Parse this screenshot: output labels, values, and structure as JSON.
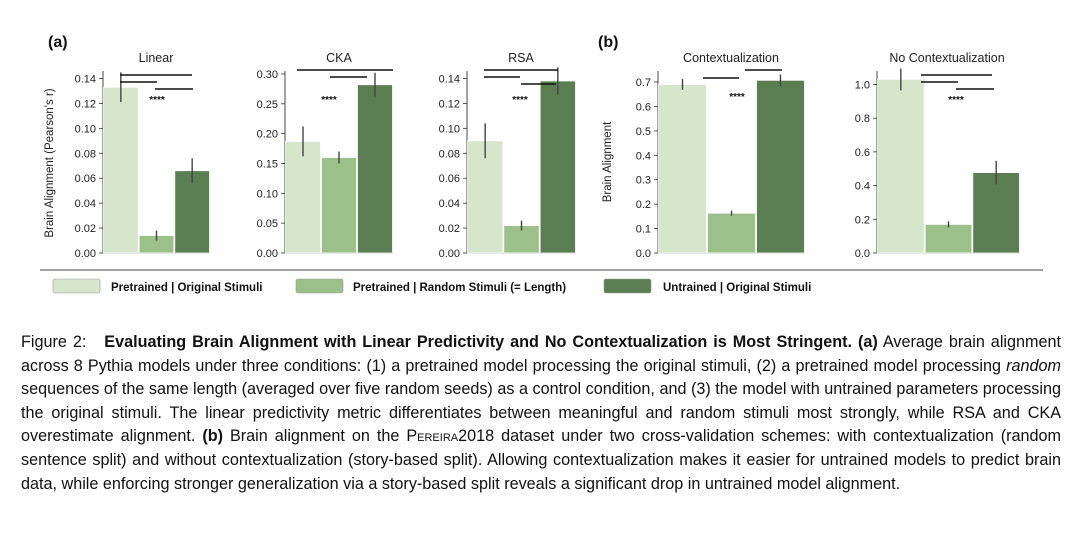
{
  "colors": {
    "pretrained_original": "#d5e6cb",
    "pretrained_random": "#9cc08a",
    "untrained_original": "#5a7d51",
    "bar_edge": "#ffffff",
    "error_bar": "#444444",
    "axis": "#333333"
  },
  "figure": {
    "panel_a_label": "(a)",
    "panel_b_label": "(b)",
    "ylabel_a": "Brain Alignment (Pearson's r)",
    "ylabel_b": "Brain Alignment",
    "significance": "****",
    "legend": [
      "Pretrained | Original Stimuli",
      "Pretrained | Random Stimuli (= Length)",
      "Untrained | Original Stimuli"
    ]
  },
  "chart_data": [
    {
      "type": "bar",
      "panel": "a",
      "title": "Linear",
      "categories": [
        "Pretrained | Original Stimuli",
        "Pretrained | Random Stimuli (= Length)",
        "Untrained | Original Stimuli"
      ],
      "values": [
        0.133,
        0.014,
        0.066
      ],
      "errors": [
        0.012,
        0.004,
        0.01
      ],
      "ylim": [
        0,
        0.146
      ],
      "yticks": [
        "0.00",
        "0.02",
        "0.04",
        "0.06",
        "0.08",
        "0.10",
        "0.12",
        "0.14"
      ],
      "significance": "****"
    },
    {
      "type": "bar",
      "panel": "a",
      "title": "CKA",
      "categories": [
        "Pretrained | Original Stimuli",
        "Pretrained | Random Stimuli (= Length)",
        "Untrained | Original Stimuli"
      ],
      "values": [
        0.187,
        0.16,
        0.282
      ],
      "errors": [
        0.025,
        0.01,
        0.02
      ],
      "ylim": [
        0,
        0.305
      ],
      "yticks": [
        "0.00",
        "0.05",
        "0.10",
        "0.15",
        "0.20",
        "0.25",
        "0.30"
      ],
      "significance": "****"
    },
    {
      "type": "bar",
      "panel": "a",
      "title": "RSA",
      "categories": [
        "Pretrained | Original Stimuli",
        "Pretrained | Random Stimuli (= Length)",
        "Untrained | Original Stimuli"
      ],
      "values": [
        0.09,
        0.022,
        0.138
      ],
      "errors": [
        0.014,
        0.004,
        0.011
      ],
      "ylim": [
        0,
        0.146
      ],
      "yticks": [
        "0.00",
        "0.02",
        "0.04",
        "0.06",
        "0.08",
        "0.10",
        "0.12",
        "0.14"
      ],
      "significance": "****"
    },
    {
      "type": "bar",
      "panel": "b",
      "title": "Contextualization",
      "categories": [
        "Pretrained | Original Stimuli",
        "Pretrained | Random Stimuli (= Length)",
        "Untrained | Original Stimuli"
      ],
      "values": [
        0.69,
        0.163,
        0.707
      ],
      "errors": [
        0.022,
        0.01,
        0.024
      ],
      "ylim": [
        0,
        0.745
      ],
      "yticks": [
        "0.0",
        "0.1",
        "0.2",
        "0.3",
        "0.4",
        "0.5",
        "0.6",
        "0.7"
      ],
      "significance": "****"
    },
    {
      "type": "bar",
      "panel": "b",
      "title": "No Contextualization",
      "categories": [
        "Pretrained | Original Stimuli",
        "Pretrained | Random Stimuli (= Length)",
        "Untrained | Original Stimuli"
      ],
      "values": [
        1.03,
        0.17,
        0.477
      ],
      "errors": [
        0.065,
        0.018,
        0.07
      ],
      "ylim": [
        0,
        1.08
      ],
      "yticks": [
        "0.0",
        "0.2",
        "0.4",
        "0.6",
        "0.8",
        "1.0"
      ],
      "significance": "****"
    }
  ],
  "caption": {
    "figure_label": "Figure 2:",
    "title": "Evaluating Brain Alignment with Linear Predictivity and No Contextualization is Most Stringent",
    "period": ".",
    "a_label": "(a)",
    "a_text_1": "Average brain alignment across 8 Pythia models under three conditions: (1) a pretrained model processing the original stimuli, (2) a pretrained model processing",
    "a_emph": "random",
    "a_text_2": "sequences of the same length (averaged over five random seeds) as a control condition, and (3) the model with untrained parameters processing the original stimuli. The linear predictivity metric differentiates between meaningful and random stimuli most strongly, while RSA and CKA overestimate alignment.",
    "b_label": "(b)",
    "b_text_1": "Brain alignment on the",
    "b_dataset": "Pereira",
    "b_year": "2018",
    "b_text_2": "dataset under two cross-validation schemes: with contextualization (random sentence split) and without contextualization (story-based split). Allowing contextualization makes it easier for untrained models to predict brain data, while enforcing stronger generalization via a story-based split reveals a significant drop in untrained model alignment."
  }
}
